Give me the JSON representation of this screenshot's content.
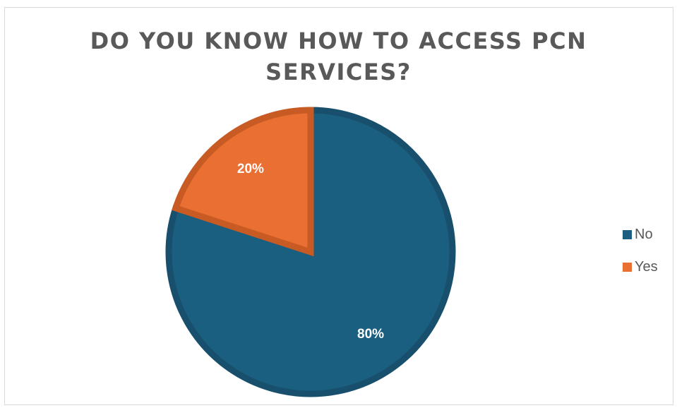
{
  "chart_data": {
    "type": "pie",
    "title_lines": [
      "DO YOU KNOW HOW TO ACCESS PCN",
      "SERVICES?"
    ],
    "categories": [
      "No",
      "Yes"
    ],
    "values": [
      80,
      20
    ],
    "labels": [
      "80%",
      "20%"
    ],
    "colors": [
      "#1a5e80",
      "#e96f33"
    ],
    "edge_colors": [
      "#174f6c",
      "#c85a24"
    ],
    "start_angle_deg": 0,
    "direction": "clockwise",
    "legend_position": "right"
  }
}
